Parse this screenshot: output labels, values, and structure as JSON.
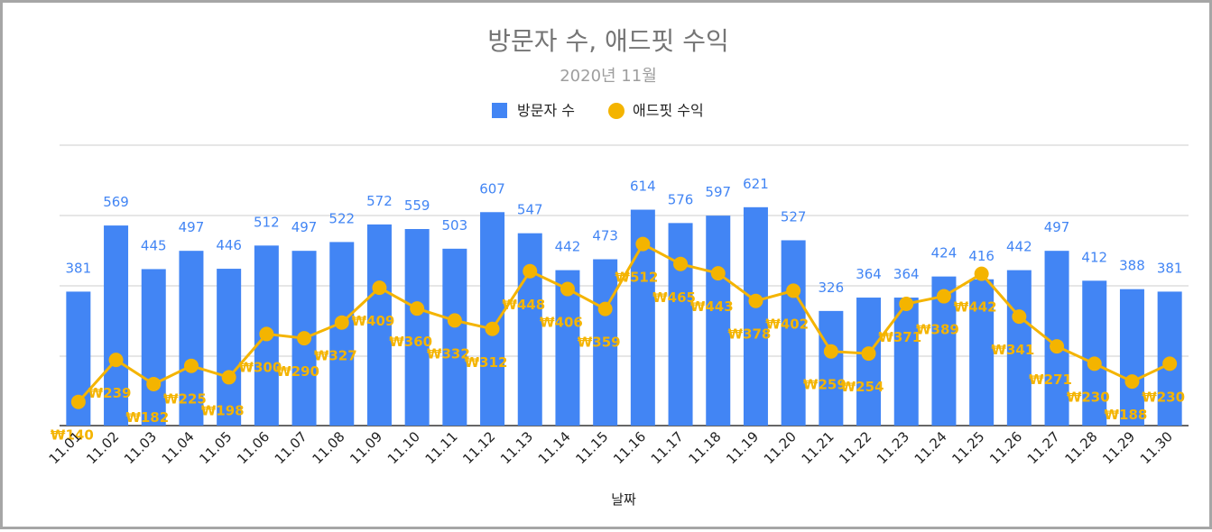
{
  "chart_data": {
    "type": "bar",
    "title": "방문자 수, 애드핏 수익",
    "subtitle": "2020년 11월",
    "xlabel": "날짜",
    "categories": [
      "11.01",
      "11.02",
      "11.03",
      "11.04",
      "11.05",
      "11.06",
      "11.07",
      "11.08",
      "11.09",
      "11.10",
      "11.11",
      "11.12",
      "11.13",
      "11.14",
      "11.15",
      "11.16",
      "11.17",
      "11.18",
      "11.19",
      "11.20",
      "11.21",
      "11.22",
      "11.23",
      "11.24",
      "11.25",
      "11.26",
      "11.27",
      "11.28",
      "11.29",
      "11.30"
    ],
    "series": [
      {
        "name": "방문자 수",
        "type": "bar",
        "color": "#4285f4",
        "values": [
          381,
          569,
          445,
          497,
          446,
          512,
          497,
          522,
          572,
          559,
          503,
          607,
          547,
          442,
          473,
          614,
          576,
          597,
          621,
          527,
          326,
          364,
          364,
          424,
          416,
          442,
          497,
          412,
          388,
          381
        ],
        "labels": [
          "381",
          "569",
          "445",
          "497",
          "446",
          "512",
          "497",
          "522",
          "572",
          "559",
          "503",
          "607",
          "547",
          "442",
          "473",
          "614",
          "576",
          "597",
          "621",
          "527",
          "326",
          "364",
          "364",
          "424",
          "416",
          "442",
          "497",
          "412",
          "388",
          "381"
        ]
      },
      {
        "name": "애드핏 수익",
        "type": "line",
        "color": "#f4b400",
        "values": [
          140,
          239,
          182,
          225,
          198,
          300,
          290,
          327,
          409,
          360,
          332,
          312,
          448,
          406,
          359,
          512,
          465,
          443,
          378,
          402,
          259,
          254,
          371,
          389,
          442,
          341,
          271,
          230,
          188,
          230
        ],
        "labels": [
          "₩140",
          "₩239",
          "₩182",
          "₩225",
          "₩198",
          "₩300",
          "₩290",
          "₩327",
          "₩409",
          "₩360",
          "₩332",
          "₩312",
          "₩448",
          "₩406",
          "₩359",
          "₩512",
          "₩465",
          "₩443",
          "₩378",
          "₩402",
          "₩259",
          "₩254",
          "₩371",
          "₩389",
          "₩442",
          "₩341",
          "₩271",
          "₩230",
          "₩188",
          "₩230"
        ]
      }
    ],
    "grid": true,
    "legend": "top-center"
  }
}
